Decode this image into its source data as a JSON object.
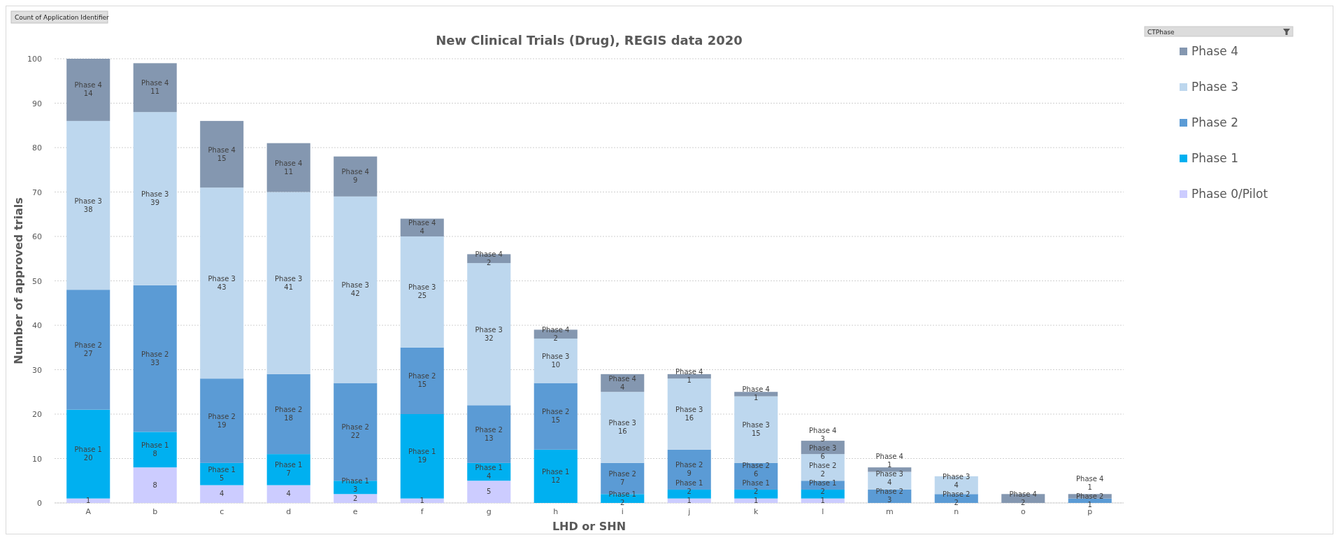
{
  "chart_data": {
    "type": "bar",
    "stacked": true,
    "title": "New Clinical Trials (Drug), REGIS data 2020",
    "xlabel": "LHD or SHN",
    "ylabel": "Number of approved trials",
    "legend_title": "CTPhase",
    "annotations": [
      "Count of Application Identifier"
    ],
    "categories": [
      "A",
      "b",
      "c",
      "d",
      "e",
      "f",
      "g",
      "h",
      "i",
      "j",
      "k",
      "l",
      "m",
      "n",
      "o",
      "p"
    ],
    "series": [
      {
        "name": "Phase 0/Pilot",
        "color": "#ccccff",
        "values": [
          1,
          8,
          4,
          4,
          2,
          1,
          5,
          null,
          null,
          1,
          1,
          1,
          null,
          null,
          null,
          null
        ],
        "value_labels": [
          "1",
          "8",
          "4",
          "4",
          "2",
          "1",
          "5",
          null,
          null,
          "1",
          "1",
          "1",
          null,
          null,
          null,
          null
        ]
      },
      {
        "name": "Phase 1",
        "color": "#00b0f0",
        "values": [
          20,
          8,
          5,
          7,
          3,
          19,
          4,
          12,
          2,
          2,
          2,
          2,
          null,
          null,
          null,
          null
        ],
        "value_labels": [
          "Phase 1\n20",
          "Phase 1\n8",
          "Phase 1\n5",
          "Phase 1\n7",
          "Phase 1\n3",
          "Phase 1\n19",
          "Phase 1\n4",
          "Phase 1\n12",
          "Phase 1\n2",
          "Phase 1\n2",
          "Phase 1\n2",
          "Phase 1\n2",
          null,
          null,
          null,
          null
        ]
      },
      {
        "name": "Phase 2",
        "color": "#5b9bd5",
        "values": [
          27,
          33,
          19,
          18,
          22,
          15,
          13,
          15,
          7,
          9,
          6,
          2,
          3,
          2,
          null,
          1
        ],
        "value_labels": [
          "Phase 2\n27",
          "Phase 2\n33",
          "Phase 2\n19",
          "Phase 2\n18",
          "Phase 2\n22",
          "Phase 2\n15",
          "Phase 2\n13",
          "Phase 2\n15",
          "Phase 2\n7",
          "Phase 2\n9",
          "Phase 2\n6",
          "Phase 2\n2",
          "Phase 2\n3",
          "Phase 2\n2",
          null,
          "Phase 2\n1"
        ]
      },
      {
        "name": "Phase 3",
        "color": "#bdd7ee",
        "values": [
          38,
          39,
          43,
          41,
          42,
          25,
          32,
          10,
          16,
          16,
          15,
          6,
          4,
          4,
          null,
          null
        ],
        "value_labels": [
          "Phase 3\n38",
          "Phase 3\n39",
          "Phase 3\n43",
          "Phase 3\n41",
          "Phase 3\n42",
          "Phase 3\n25",
          "Phase 3\n32",
          "Phase 3\n10",
          "Phase 3\n16",
          "Phase 3\n16",
          "Phase 3\n15",
          "Phase 3\n6",
          "Phase 3\n4",
          "Phase 3\n4",
          null,
          null
        ]
      },
      {
        "name": "Phase 4",
        "color": "#8497b0",
        "values": [
          14,
          11,
          15,
          11,
          9,
          4,
          2,
          2,
          4,
          1,
          1,
          3,
          1,
          null,
          2,
          1
        ],
        "value_labels": [
          "Phase 4\n14",
          "Phase 4\n11",
          "Phase 4\n15",
          "Phase 4\n11",
          "Phase 4\n9",
          "Phase 4\n4",
          "Phase 4\n2",
          "Phase 4\n2",
          "Phase 4\n4",
          "Phase 4\n1",
          "Phase 4\n1",
          "Phase 4\n3",
          "Phase 4\n1",
          null,
          "Phase 4\n2",
          "Phase 4\n1"
        ]
      }
    ],
    "ylim": [
      0,
      100
    ],
    "yticks": [
      0,
      10,
      20,
      30,
      40,
      50,
      60,
      70,
      80,
      90,
      100
    ],
    "grid": "y",
    "legend": "right"
  }
}
